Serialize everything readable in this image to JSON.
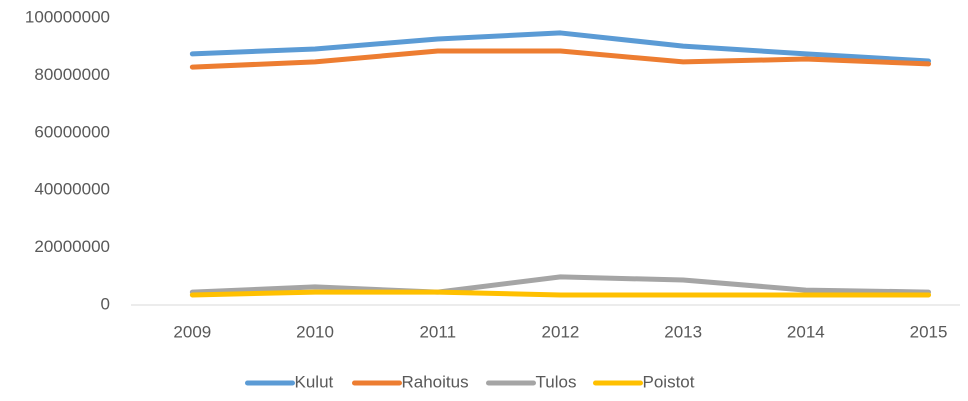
{
  "chart_data": {
    "type": "line",
    "categories": [
      "2009",
      "2010",
      "2011",
      "2012",
      "2013",
      "2014",
      "2015"
    ],
    "series": [
      {
        "name": "Kulut",
        "color": "#5b9bd5",
        "values": [
          87500000,
          89200000,
          92700000,
          94800000,
          90200000,
          87500000,
          85000000
        ]
      },
      {
        "name": "Rahoitus",
        "color": "#ed7d31",
        "values": [
          82900000,
          84700000,
          88500000,
          88500000,
          84700000,
          85700000,
          84000000
        ]
      },
      {
        "name": "Tulos",
        "color": "#a5a5a5",
        "values": [
          4500000,
          6300000,
          4500000,
          9800000,
          8700000,
          5200000,
          4500000
        ]
      },
      {
        "name": "Poistot",
        "color": "#ffc000",
        "values": [
          3500000,
          4500000,
          4500000,
          3500000,
          3500000,
          3500000,
          3500000
        ]
      }
    ],
    "ylim": [
      0,
      100000000
    ],
    "yticks": [
      0,
      20000000,
      40000000,
      60000000,
      80000000,
      100000000
    ],
    "grid": false,
    "legend": "bottom"
  }
}
